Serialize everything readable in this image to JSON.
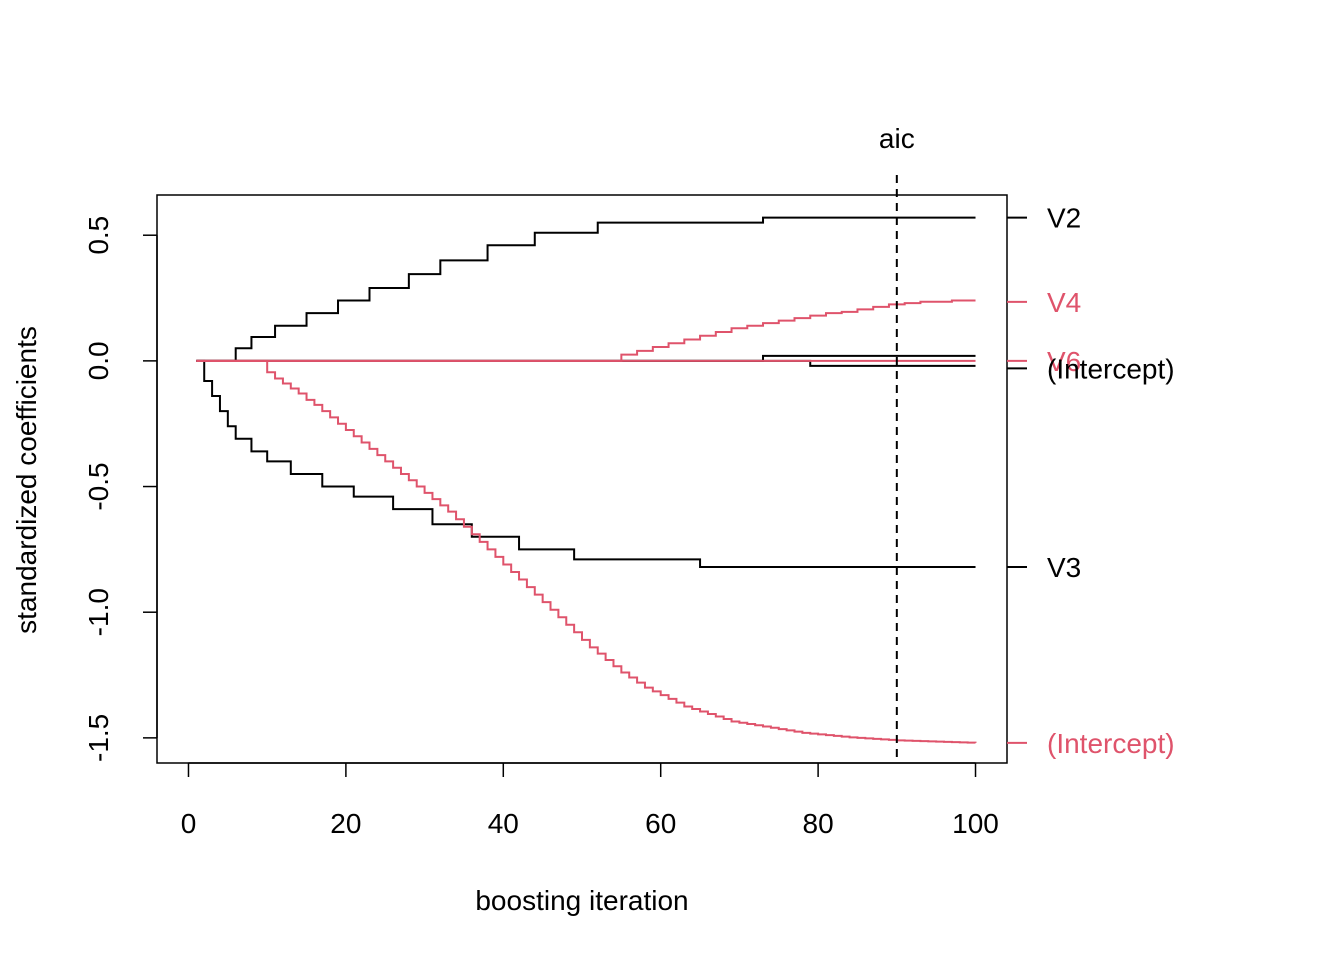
{
  "chart_data": {
    "type": "line",
    "title": "",
    "xlabel": "boosting iteration",
    "ylabel": "standardized coefficients",
    "xlim": [
      -4,
      104
    ],
    "ylim": [
      -1.6,
      0.66
    ],
    "x_ticks": [
      0,
      20,
      40,
      60,
      80,
      100
    ],
    "y_ticks": [
      -1.5,
      -1.0,
      -0.5,
      0.0,
      0.5
    ],
    "x_tick_labels": [
      "0",
      "20",
      "40",
      "60",
      "80",
      "100"
    ],
    "y_tick_labels": [
      "-1.5",
      "-1.0",
      "-0.5",
      "0.0",
      "0.5"
    ],
    "grid": false,
    "step_style": "post",
    "vline": {
      "x": 90,
      "label": "aic",
      "style": "dashed",
      "color": "#000000"
    },
    "series": [
      {
        "name": "V2",
        "color": "#000000",
        "x": [
          1,
          6,
          8,
          11,
          15,
          19,
          23,
          28,
          32,
          38,
          44,
          52,
          73,
          100
        ],
        "y": [
          0,
          0.05,
          0.095,
          0.14,
          0.19,
          0.24,
          0.29,
          0.345,
          0.4,
          0.46,
          0.51,
          0.55,
          0.57,
          0.57
        ]
      },
      {
        "name": "V3",
        "color": "#000000",
        "x": [
          1,
          2,
          3,
          4,
          5,
          6,
          8,
          10,
          13,
          17,
          21,
          26,
          31,
          36,
          42,
          49,
          65,
          100
        ],
        "y": [
          0,
          -0.08,
          -0.14,
          -0.2,
          -0.26,
          -0.31,
          -0.36,
          -0.4,
          -0.45,
          -0.5,
          -0.54,
          -0.59,
          -0.65,
          -0.7,
          -0.75,
          -0.79,
          -0.82,
          -0.82
        ]
      },
      {
        "name": "(Intercept)",
        "color": "#000000",
        "x": [
          1,
          73,
          80,
          100
        ],
        "y": [
          0,
          0.02,
          0.02,
          0.02
        ]
      },
      {
        "name": "",
        "color": "#000000",
        "x": [
          1,
          79,
          100
        ],
        "y": [
          0,
          -0.02,
          -0.02
        ]
      },
      {
        "name": "(Intercept)",
        "color": "#DF536B",
        "x": [
          1,
          10,
          11,
          12,
          13,
          14,
          15,
          16,
          17,
          18,
          19,
          20,
          21,
          22,
          23,
          24,
          25,
          26,
          27,
          28,
          29,
          30,
          31,
          32,
          33,
          34,
          35,
          36,
          37,
          38,
          39,
          40,
          41,
          42,
          43,
          44,
          45,
          46,
          47,
          48,
          49,
          50,
          51,
          52,
          53,
          54,
          55,
          56,
          57,
          58,
          59,
          60,
          61,
          62,
          63,
          64,
          65,
          66,
          67,
          68,
          69,
          70,
          71,
          72,
          73,
          74,
          75,
          76,
          77,
          78,
          79,
          80,
          81,
          82,
          83,
          84,
          85,
          86,
          87,
          88,
          89,
          90,
          91,
          92,
          93,
          94,
          95,
          96,
          97,
          98,
          99,
          100
        ],
        "y": [
          0,
          -0.045,
          -0.07,
          -0.09,
          -0.11,
          -0.13,
          -0.155,
          -0.175,
          -0.2,
          -0.225,
          -0.25,
          -0.275,
          -0.3,
          -0.325,
          -0.35,
          -0.375,
          -0.4,
          -0.425,
          -0.45,
          -0.475,
          -0.5,
          -0.525,
          -0.55,
          -0.575,
          -0.6,
          -0.63,
          -0.66,
          -0.69,
          -0.72,
          -0.75,
          -0.78,
          -0.81,
          -0.84,
          -0.87,
          -0.9,
          -0.93,
          -0.96,
          -0.99,
          -1.02,
          -1.05,
          -1.08,
          -1.11,
          -1.14,
          -1.165,
          -1.19,
          -1.215,
          -1.24,
          -1.26,
          -1.28,
          -1.3,
          -1.315,
          -1.33,
          -1.345,
          -1.36,
          -1.375,
          -1.385,
          -1.395,
          -1.405,
          -1.415,
          -1.425,
          -1.435,
          -1.44,
          -1.445,
          -1.45,
          -1.455,
          -1.46,
          -1.465,
          -1.47,
          -1.475,
          -1.48,
          -1.483,
          -1.486,
          -1.489,
          -1.492,
          -1.495,
          -1.498,
          -1.5,
          -1.502,
          -1.504,
          -1.506,
          -1.508,
          -1.51,
          -1.511,
          -1.512,
          -1.513,
          -1.514,
          -1.515,
          -1.516,
          -1.517,
          -1.518,
          -1.519,
          -1.52
        ]
      },
      {
        "name": "V4",
        "color": "#DF536B",
        "x": [
          1,
          55,
          57,
          59,
          61,
          63,
          65,
          67,
          69,
          71,
          73,
          75,
          77,
          79,
          81,
          83,
          85,
          87,
          89,
          91,
          93,
          95,
          97,
          99,
          100
        ],
        "y": [
          0,
          0.025,
          0.04,
          0.055,
          0.07,
          0.085,
          0.1,
          0.115,
          0.13,
          0.14,
          0.15,
          0.16,
          0.17,
          0.18,
          0.19,
          0.195,
          0.205,
          0.215,
          0.225,
          0.23,
          0.235,
          0.235,
          0.24,
          0.24,
          0.24
        ]
      },
      {
        "name": "V6",
        "color": "#DF536B",
        "x": [
          1,
          100
        ],
        "y": [
          0,
          0
        ]
      }
    ],
    "right_labels": [
      {
        "text": "V2",
        "y": 0.57,
        "color": "#000000"
      },
      {
        "text": "V4",
        "y": 0.235,
        "color": "#DF536B"
      },
      {
        "text": "V6",
        "y": 0.0,
        "color": "#DF536B"
      },
      {
        "text": "(Intercept)",
        "y": -0.03,
        "color": "#000000"
      },
      {
        "text": "V3",
        "y": -0.82,
        "color": "#000000"
      },
      {
        "text": "(Intercept)",
        "y": -1.52,
        "color": "#DF536B"
      }
    ]
  }
}
